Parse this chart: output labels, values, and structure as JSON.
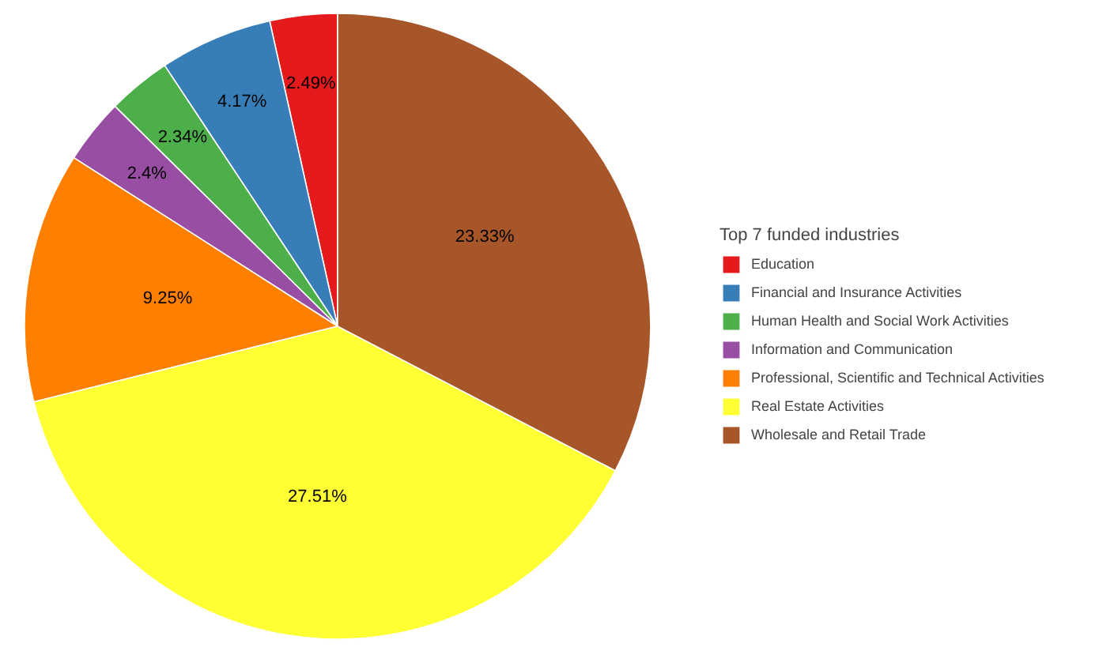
{
  "chart_data": {
    "type": "pie",
    "legend_title": "Top 7 funded industries",
    "categories": [
      "Education",
      "Financial and Insurance Activities",
      "Human Health and Social Work Activities",
      "Information and Communication",
      "Professional, Scientific and Technical Activities",
      "Real Estate Activities",
      "Wholesale and Retail Trade"
    ],
    "values": [
      2.49,
      4.17,
      2.34,
      2.4,
      9.25,
      27.51,
      23.33
    ],
    "value_labels": [
      "2.49%",
      "4.17%",
      "2.34%",
      "2.4%",
      "9.25%",
      "27.51%",
      "23.33%"
    ],
    "colors": [
      "#e41a1c",
      "#377eb8",
      "#4daf4a",
      "#984ea3",
      "#ff7f00",
      "#ffff33",
      "#a65628"
    ],
    "legend": "right"
  }
}
